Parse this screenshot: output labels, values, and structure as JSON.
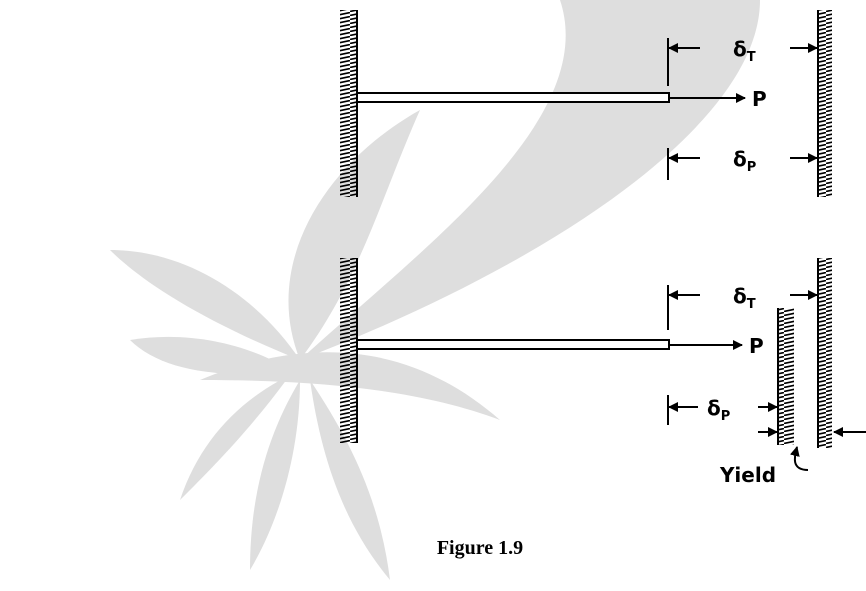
{
  "top": {
    "delta_t": {
      "symbol": "δ",
      "subscript": "T"
    },
    "load": "P",
    "delta_p": {
      "symbol": "δ",
      "subscript": "P"
    }
  },
  "bottom": {
    "delta_t": {
      "symbol": "δ",
      "subscript": "T"
    },
    "load": "P",
    "delta_p": {
      "symbol": "δ",
      "subscript": "P"
    },
    "yield": "Yield"
  },
  "caption": "Figure 1.9"
}
